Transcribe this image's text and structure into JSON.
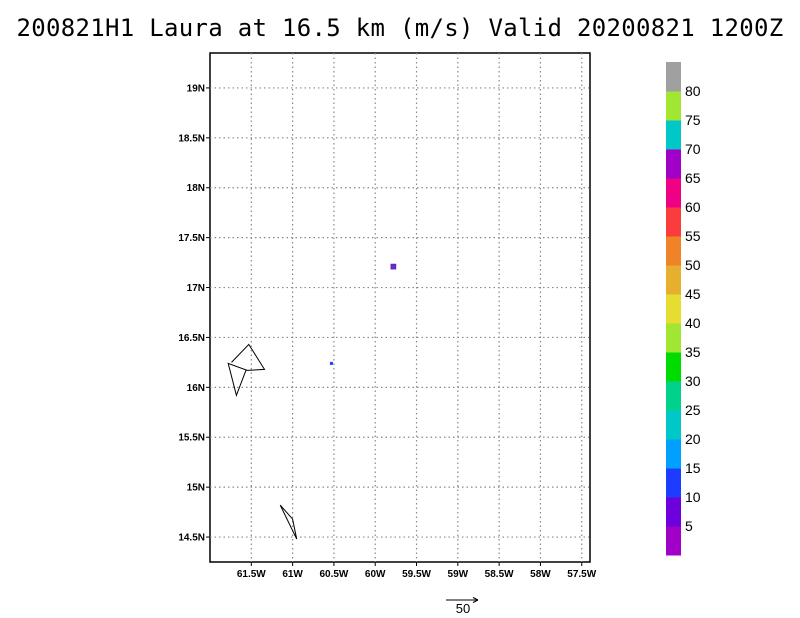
{
  "title": "200821H1 Laura at 16.5 km (m/s) Valid 20200821 1200Z",
  "map": {
    "lon_range": [
      -62.0,
      -57.4
    ],
    "lat_range": [
      14.25,
      19.35
    ],
    "lat_ticks": [
      {
        "value": 19.0,
        "label": "19N"
      },
      {
        "value": 18.5,
        "label": "18.5N"
      },
      {
        "value": 18.0,
        "label": "18N"
      },
      {
        "value": 17.5,
        "label": "17.5N"
      },
      {
        "value": 17.0,
        "label": "17N"
      },
      {
        "value": 16.5,
        "label": "16.5N"
      },
      {
        "value": 16.0,
        "label": "16N"
      },
      {
        "value": 15.5,
        "label": "15.5N"
      },
      {
        "value": 15.0,
        "label": "15N"
      },
      {
        "value": 14.5,
        "label": "14.5N"
      }
    ],
    "lon_ticks": [
      {
        "value": -61.5,
        "label": "61.5W"
      },
      {
        "value": -61.0,
        "label": "61W"
      },
      {
        "value": -60.5,
        "label": "60.5W"
      },
      {
        "value": -60.0,
        "label": "60W"
      },
      {
        "value": -59.5,
        "label": "59.5W"
      },
      {
        "value": -59.0,
        "label": "59W"
      },
      {
        "value": -58.5,
        "label": "58.5W"
      },
      {
        "value": -58.0,
        "label": "58W"
      },
      {
        "value": -57.5,
        "label": "57.5W"
      }
    ],
    "grid": true,
    "grid_style": "dotted",
    "coastlines": [
      {
        "name": "guadeloupe",
        "points": [
          [
            -61.74,
            16.25
          ],
          [
            -61.53,
            16.43
          ],
          [
            -61.34,
            16.18
          ],
          [
            -61.55,
            16.17
          ],
          [
            -61.78,
            16.24
          ],
          [
            -61.68,
            15.92
          ],
          [
            -61.56,
            16.18
          ]
        ]
      },
      {
        "name": "dominica",
        "points": [
          [
            -61.15,
            14.82
          ],
          [
            -60.95,
            14.48
          ],
          [
            -61.0,
            14.68
          ],
          [
            -61.15,
            14.82
          ]
        ]
      }
    ],
    "data_marks": [
      {
        "lon": -59.78,
        "lat": 17.21,
        "color": "#6e2bd3",
        "value_class": "5-10"
      },
      {
        "lon": -60.53,
        "lat": 16.24,
        "color": "#1e3cff",
        "value_class": "10-15"
      }
    ]
  },
  "colorbar": {
    "labels": [
      "5",
      "10",
      "15",
      "20",
      "25",
      "30",
      "35",
      "40",
      "45",
      "50",
      "55",
      "60",
      "65",
      "70",
      "75",
      "80"
    ],
    "colors": [
      "#a000c8",
      "#6e00dc",
      "#1e3cff",
      "#00a0ff",
      "#00c8c8",
      "#00d28c",
      "#00dc00",
      "#a0e632",
      "#e6dc32",
      "#e6af2d",
      "#f08228",
      "#fa3c3c",
      "#f00082",
      "#a000c8",
      "#00c8c8",
      "#a0e632",
      "#a0a0a0"
    ]
  },
  "vector_key": {
    "label": "50",
    "value": 50
  }
}
